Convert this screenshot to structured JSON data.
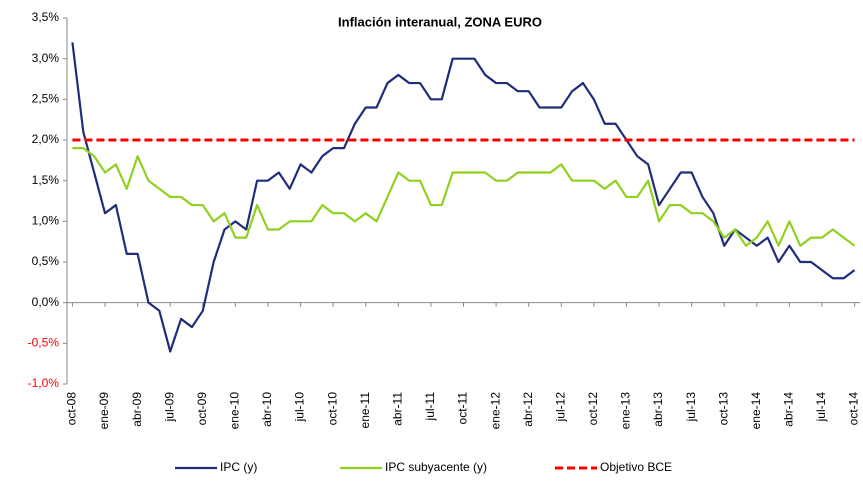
{
  "chart_data": {
    "type": "line",
    "title": "Inflación interanual, ZONA EURO",
    "categories": [
      "oct-08",
      null,
      null,
      "ene-09",
      null,
      null,
      "abr-09",
      null,
      null,
      "jul-09",
      null,
      null,
      "oct-09",
      null,
      null,
      "ene-10",
      null,
      null,
      "abr-10",
      null,
      null,
      "jul-10",
      null,
      null,
      "oct-10",
      null,
      null,
      "ene-11",
      null,
      null,
      "abr-11",
      null,
      null,
      "jul-11",
      null,
      null,
      "oct-11",
      null,
      null,
      "ene-12",
      null,
      null,
      "abr-12",
      null,
      null,
      "jul-12",
      null,
      null,
      "oct-12",
      null,
      null,
      "ene-13",
      null,
      null,
      "abr-13",
      null,
      null,
      "jul-13",
      null,
      null,
      "oct-13",
      null,
      null,
      "ene-14",
      null,
      null,
      "abr-14",
      null,
      null,
      "jul-14",
      null,
      null,
      "oct-14"
    ],
    "series": [
      {
        "name": "IPC (y)",
        "color": "#1f2d7a",
        "dashed": false,
        "values": [
          3.2,
          2.1,
          1.6,
          1.1,
          1.2,
          0.6,
          0.6,
          0.0,
          -0.1,
          -0.6,
          -0.2,
          -0.3,
          -0.1,
          0.5,
          0.9,
          1.0,
          0.9,
          1.5,
          1.5,
          1.6,
          1.4,
          1.7,
          1.6,
          1.8,
          1.9,
          1.9,
          2.2,
          2.4,
          2.4,
          2.7,
          2.8,
          2.7,
          2.7,
          2.5,
          2.5,
          3.0,
          3.0,
          3.0,
          2.8,
          2.7,
          2.7,
          2.6,
          2.6,
          2.4,
          2.4,
          2.4,
          2.6,
          2.7,
          2.5,
          2.2,
          2.2,
          2.0,
          1.8,
          1.7,
          1.2,
          1.4,
          1.6,
          1.6,
          1.3,
          1.1,
          0.7,
          0.9,
          0.8,
          0.7,
          0.8,
          0.5,
          0.7,
          0.5,
          0.5,
          0.4,
          0.3,
          0.3,
          0.4
        ]
      },
      {
        "name": "IPC subyacente (y)",
        "color": "#8fd11e",
        "dashed": false,
        "values": [
          1.9,
          1.9,
          1.8,
          1.6,
          1.7,
          1.4,
          1.8,
          1.5,
          1.4,
          1.3,
          1.3,
          1.2,
          1.2,
          1.0,
          1.1,
          0.8,
          0.8,
          1.2,
          0.9,
          0.9,
          1.0,
          1.0,
          1.0,
          1.2,
          1.1,
          1.1,
          1.0,
          1.1,
          1.0,
          1.3,
          1.6,
          1.5,
          1.5,
          1.2,
          1.2,
          1.6,
          1.6,
          1.6,
          1.6,
          1.5,
          1.5,
          1.6,
          1.6,
          1.6,
          1.6,
          1.7,
          1.5,
          1.5,
          1.5,
          1.4,
          1.5,
          1.3,
          1.3,
          1.5,
          1.0,
          1.2,
          1.2,
          1.1,
          1.1,
          1.0,
          0.8,
          0.9,
          0.7,
          0.8,
          1.0,
          0.7,
          1.0,
          0.7,
          0.8,
          0.8,
          0.9,
          0.8,
          0.7
        ]
      },
      {
        "name": "Objetivo BCE",
        "color": "#ff0000",
        "dashed": true,
        "values": [
          2,
          2,
          2,
          2,
          2,
          2,
          2,
          2,
          2,
          2,
          2,
          2,
          2,
          2,
          2,
          2,
          2,
          2,
          2,
          2,
          2,
          2,
          2,
          2,
          2,
          2,
          2,
          2,
          2,
          2,
          2,
          2,
          2,
          2,
          2,
          2,
          2,
          2,
          2,
          2,
          2,
          2,
          2,
          2,
          2,
          2,
          2,
          2,
          2,
          2,
          2,
          2,
          2,
          2,
          2,
          2,
          2,
          2,
          2,
          2,
          2,
          2,
          2,
          2,
          2,
          2,
          2,
          2,
          2,
          2,
          2,
          2,
          2
        ]
      }
    ],
    "ylim": [
      -1.0,
      3.5
    ],
    "yticks": [
      {
        "value": -1.0,
        "label": "-1,0%"
      },
      {
        "value": -0.5,
        "label": "-0,5%"
      },
      {
        "value": 0.0,
        "label": "0,0%"
      },
      {
        "value": 0.5,
        "label": "0,5%"
      },
      {
        "value": 1.0,
        "label": "1,0%"
      },
      {
        "value": 1.5,
        "label": "1,5%"
      },
      {
        "value": 2.0,
        "label": "2,0%"
      },
      {
        "value": 2.5,
        "label": "2,5%"
      },
      {
        "value": 3.0,
        "label": "3,0%"
      },
      {
        "value": 3.5,
        "label": "3,5%"
      }
    ],
    "grid": false,
    "legend": "bottom"
  }
}
